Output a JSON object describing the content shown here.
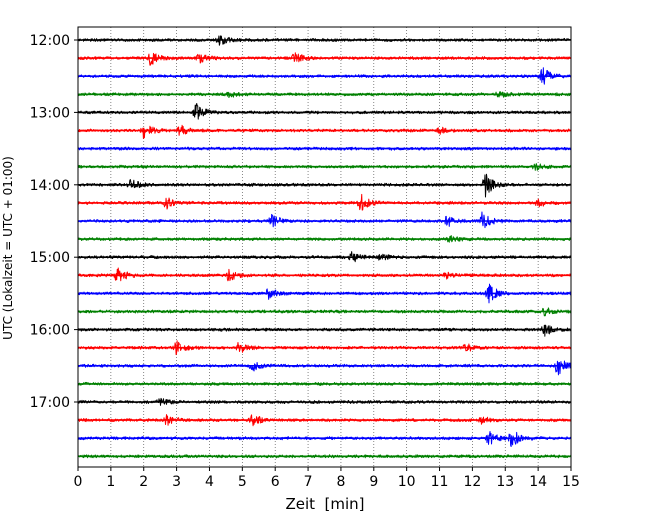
{
  "chart_data": {
    "type": "line",
    "title": "",
    "xlabel": "Zeit  [min]",
    "ylabel": "UTC (Lokalzeit = UTC + 01:00)",
    "xlim": [
      0,
      15
    ],
    "x_ticks": [
      0,
      1,
      2,
      3,
      4,
      5,
      6,
      7,
      8,
      9,
      10,
      11,
      12,
      13,
      14,
      15
    ],
    "x_tick_labels": [
      "0",
      "1",
      "2",
      "3",
      "4",
      "5",
      "6",
      "7",
      "8",
      "9",
      "10",
      "11",
      "12",
      "13",
      "14",
      "15"
    ],
    "y_tick_labels": [
      {
        "label": "12:00",
        "row": 0
      },
      {
        "label": "13:00",
        "row": 4
      },
      {
        "label": "14:00",
        "row": 8
      },
      {
        "label": "15:00",
        "row": 12
      },
      {
        "label": "16:00",
        "row": 16
      },
      {
        "label": "17:00",
        "row": 20
      }
    ],
    "grid": "vertical dotted at each minute",
    "line_interval_min": 15,
    "colors": [
      "#000000",
      "#ff0000",
      "#0000ff",
      "#008000"
    ],
    "series": [
      {
        "start": "12:00",
        "color": "#000000",
        "events": [
          {
            "t": 4.3,
            "amp": 0.9
          }
        ]
      },
      {
        "start": "12:15",
        "color": "#ff0000",
        "events": [
          {
            "t": 2.2,
            "amp": 1.0
          },
          {
            "t": 3.7,
            "amp": 0.7
          },
          {
            "t": 6.6,
            "amp": 0.9
          }
        ]
      },
      {
        "start": "12:30",
        "color": "#0000ff",
        "events": [
          {
            "t": 14.1,
            "amp": 1.6
          }
        ]
      },
      {
        "start": "12:45",
        "color": "#008000",
        "events": [
          {
            "t": 4.6,
            "amp": 0.4
          },
          {
            "t": 12.8,
            "amp": 0.6
          }
        ]
      },
      {
        "start": "13:00",
        "color": "#000000",
        "events": [
          {
            "t": 3.6,
            "amp": 1.3
          }
        ]
      },
      {
        "start": "13:15",
        "color": "#ff0000",
        "events": [
          {
            "t": 2.0,
            "amp": 1.1
          },
          {
            "t": 3.1,
            "amp": 0.8
          },
          {
            "t": 11.0,
            "amp": 0.5
          }
        ]
      },
      {
        "start": "13:30",
        "color": "#0000ff",
        "events": []
      },
      {
        "start": "13:45",
        "color": "#008000",
        "events": [
          {
            "t": 13.9,
            "amp": 0.5
          }
        ]
      },
      {
        "start": "14:00",
        "color": "#000000",
        "events": [
          {
            "t": 1.6,
            "amp": 0.9
          },
          {
            "t": 12.4,
            "amp": 1.6
          }
        ]
      },
      {
        "start": "14:15",
        "color": "#ff0000",
        "events": [
          {
            "t": 2.7,
            "amp": 0.8
          },
          {
            "t": 8.6,
            "amp": 1.4
          },
          {
            "t": 14.0,
            "amp": 0.6
          }
        ]
      },
      {
        "start": "14:30",
        "color": "#0000ff",
        "events": [
          {
            "t": 5.9,
            "amp": 0.9
          },
          {
            "t": 11.2,
            "amp": 0.9
          },
          {
            "t": 12.3,
            "amp": 1.3
          }
        ]
      },
      {
        "start": "14:45",
        "color": "#008000",
        "events": [
          {
            "t": 11.3,
            "amp": 0.5
          }
        ]
      },
      {
        "start": "15:00",
        "color": "#000000",
        "events": [
          {
            "t": 8.3,
            "amp": 0.9
          },
          {
            "t": 9.2,
            "amp": 0.4
          }
        ]
      },
      {
        "start": "15:15",
        "color": "#ff0000",
        "events": [
          {
            "t": 1.2,
            "amp": 1.2
          },
          {
            "t": 4.6,
            "amp": 0.9
          },
          {
            "t": 11.2,
            "amp": 0.4
          }
        ]
      },
      {
        "start": "15:30",
        "color": "#0000ff",
        "events": [
          {
            "t": 5.8,
            "amp": 0.9
          },
          {
            "t": 12.5,
            "amp": 1.4
          }
        ]
      },
      {
        "start": "15:45",
        "color": "#008000",
        "events": [
          {
            "t": 14.2,
            "amp": 0.6
          }
        ]
      },
      {
        "start": "16:00",
        "color": "#000000",
        "events": [
          {
            "t": 14.2,
            "amp": 0.8
          }
        ]
      },
      {
        "start": "16:15",
        "color": "#ff0000",
        "events": [
          {
            "t": 3.0,
            "amp": 0.9
          },
          {
            "t": 4.9,
            "amp": 0.8
          },
          {
            "t": 11.8,
            "amp": 0.6
          }
        ]
      },
      {
        "start": "16:30",
        "color": "#0000ff",
        "events": [
          {
            "t": 5.3,
            "amp": 0.8
          },
          {
            "t": 14.6,
            "amp": 1.5
          }
        ]
      },
      {
        "start": "16:45",
        "color": "#008000",
        "events": []
      },
      {
        "start": "17:00",
        "color": "#000000",
        "events": [
          {
            "t": 2.5,
            "amp": 0.6
          }
        ]
      },
      {
        "start": "17:15",
        "color": "#ff0000",
        "events": [
          {
            "t": 2.7,
            "amp": 0.7
          },
          {
            "t": 5.3,
            "amp": 0.9
          },
          {
            "t": 12.3,
            "amp": 0.5
          }
        ]
      },
      {
        "start": "17:30",
        "color": "#0000ff",
        "events": [
          {
            "t": 12.5,
            "amp": 0.9
          },
          {
            "t": 13.2,
            "amp": 1.4
          }
        ]
      },
      {
        "start": "17:45",
        "color": "#008000",
        "events": []
      }
    ]
  }
}
